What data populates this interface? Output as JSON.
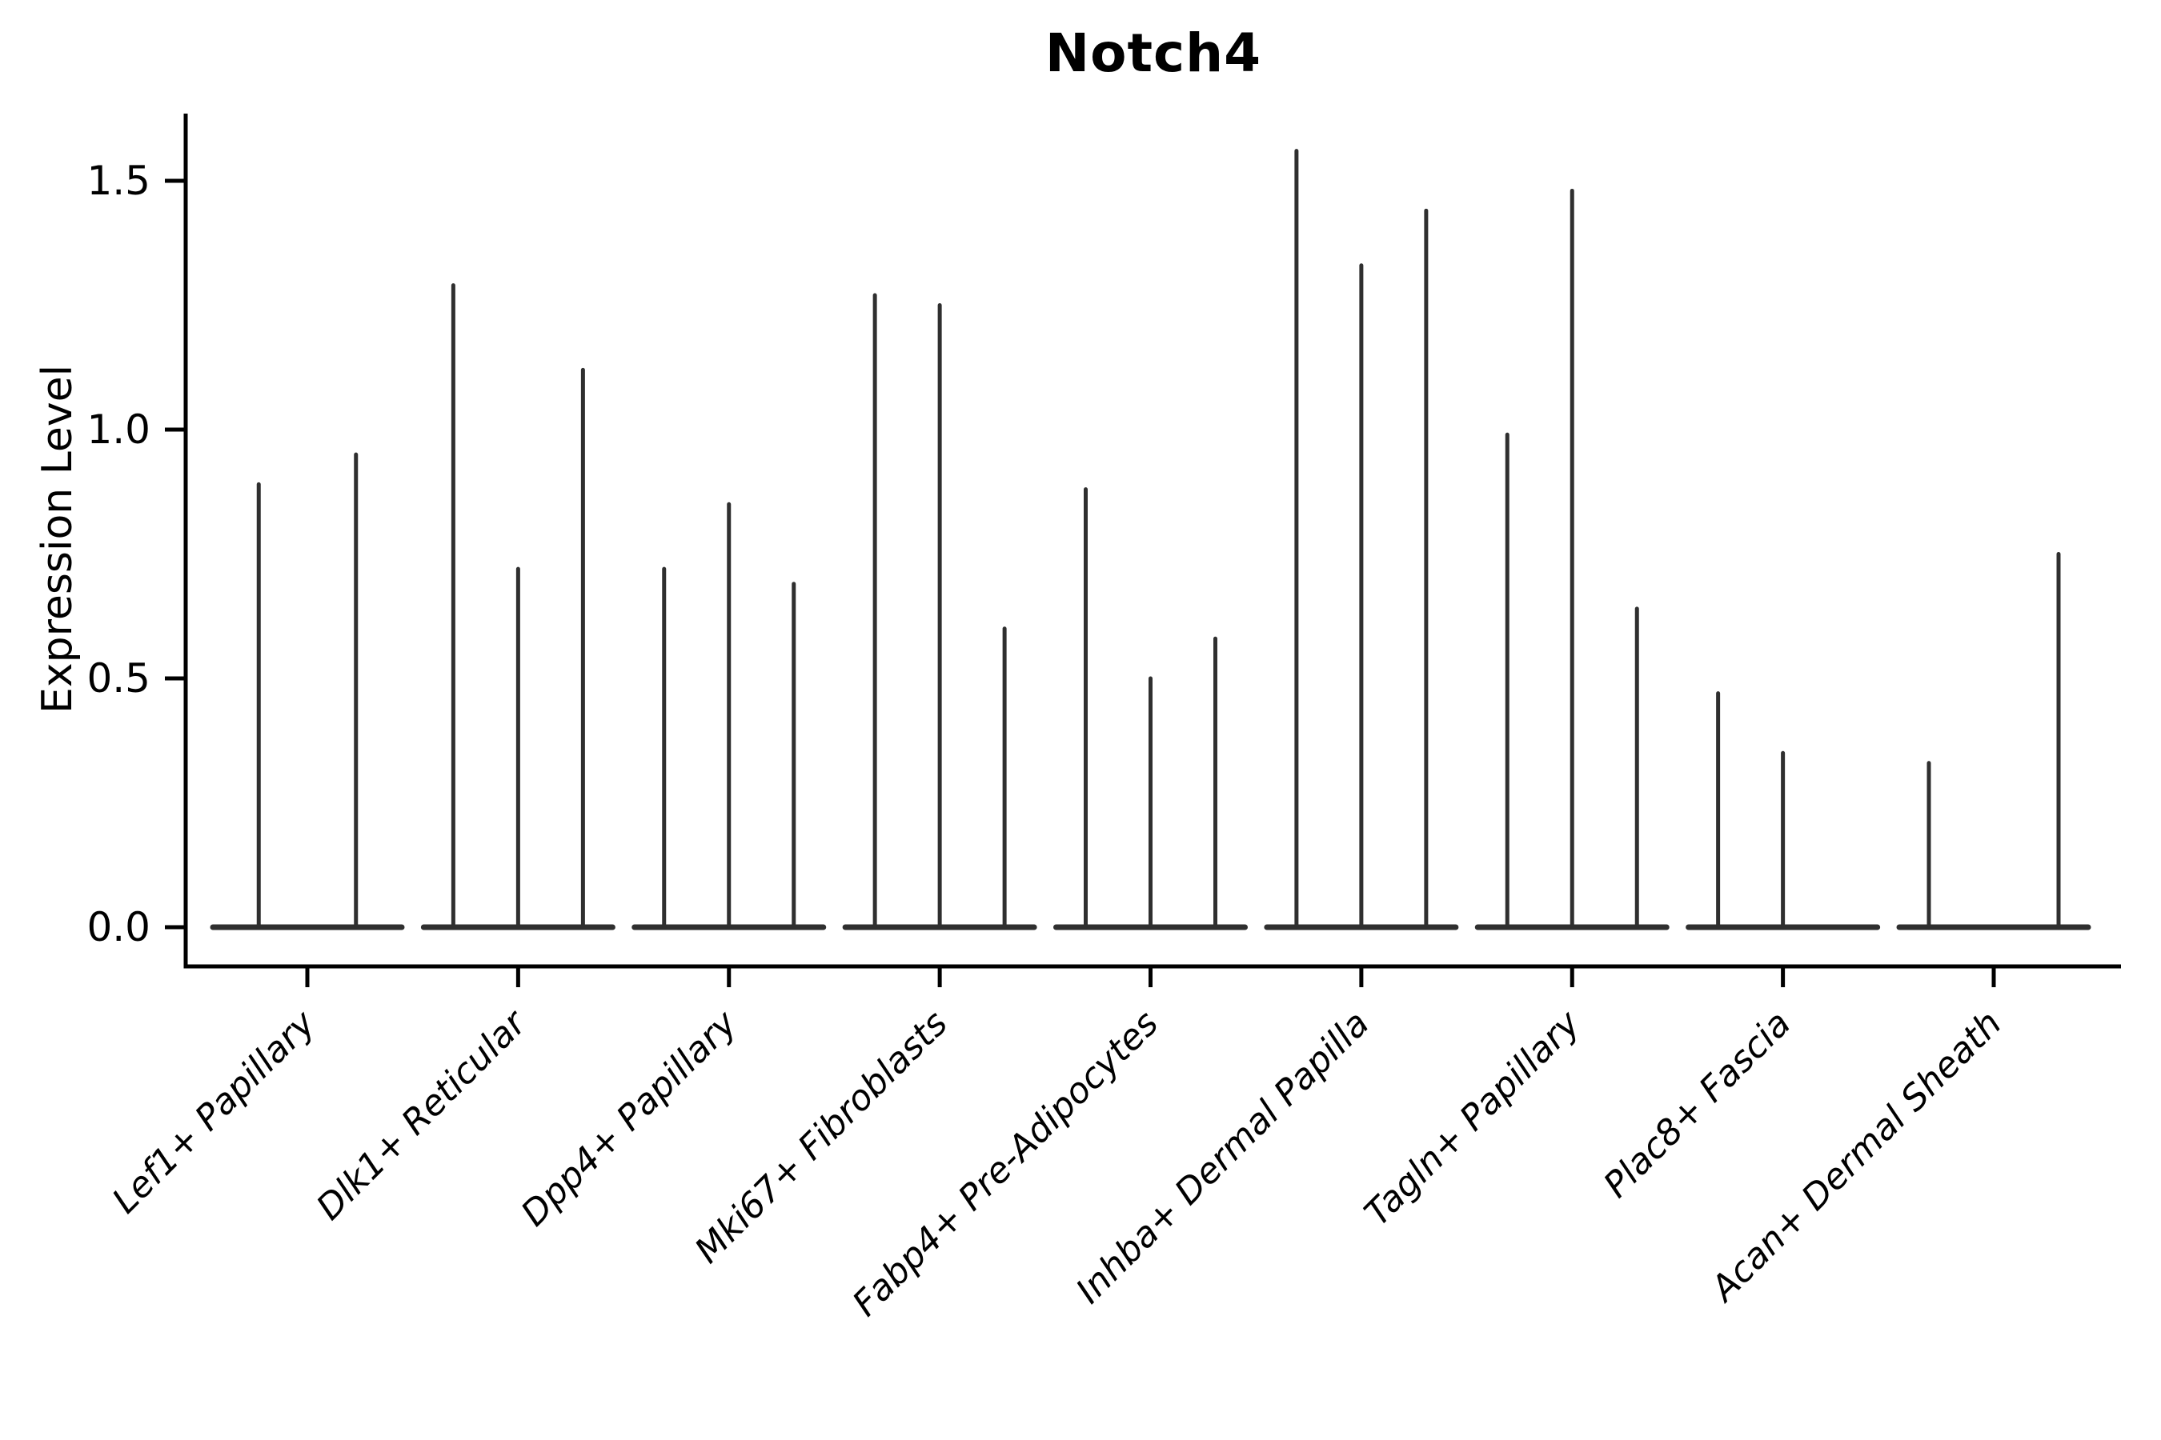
{
  "chart_data": {
    "type": "violin",
    "title": "Notch4",
    "ylabel": "Expression Level",
    "xlabel": "",
    "yticks": [
      0.0,
      0.5,
      1.0,
      1.5
    ],
    "ylim": [
      -0.08,
      1.63
    ],
    "grid": false,
    "legend_position": "none",
    "categories": [
      "Lef1+ Papillary",
      "Dlk1+ Reticular",
      "Dpp4+ Papillary",
      "Mki67+ Fibroblasts",
      "Fabp4+ Pre-Adipocytes",
      "Inhba+ Dermal Papilla",
      "Tagln+ Papillary",
      "Plac8+ Fascia",
      "Acan+ Dermal Sheath"
    ],
    "groups": [
      {
        "category": "Lef1+ Papillary",
        "violin_maxima": [
          0.89,
          0.95
        ]
      },
      {
        "category": "Dlk1+ Reticular",
        "violin_maxima": [
          1.29,
          0.72,
          1.12
        ]
      },
      {
        "category": "Dpp4+ Papillary",
        "violin_maxima": [
          0.72,
          0.85,
          0.69
        ]
      },
      {
        "category": "Mki67+ Fibroblasts",
        "violin_maxima": [
          1.27,
          1.25,
          0.6
        ]
      },
      {
        "category": "Fabp4+ Pre-Adipocytes",
        "violin_maxima": [
          0.88,
          0.5,
          0.58
        ]
      },
      {
        "category": "Inhba+ Dermal Papilla",
        "violin_maxima": [
          1.56,
          1.33,
          1.44
        ]
      },
      {
        "category": "Tagln+ Papillary",
        "violin_maxima": [
          0.99,
          1.48,
          0.64
        ]
      },
      {
        "category": "Plac8+ Fascia",
        "violin_maxima": [
          0.47,
          0.35,
          0.0
        ]
      },
      {
        "category": "Acan+ Dermal Sheath",
        "violin_maxima": [
          0.33,
          0.0,
          0.75
        ]
      }
    ],
    "violin_color": "#2f2f2f",
    "spine_color": "#000000",
    "text_color": "#000000",
    "background": "#ffffff"
  }
}
